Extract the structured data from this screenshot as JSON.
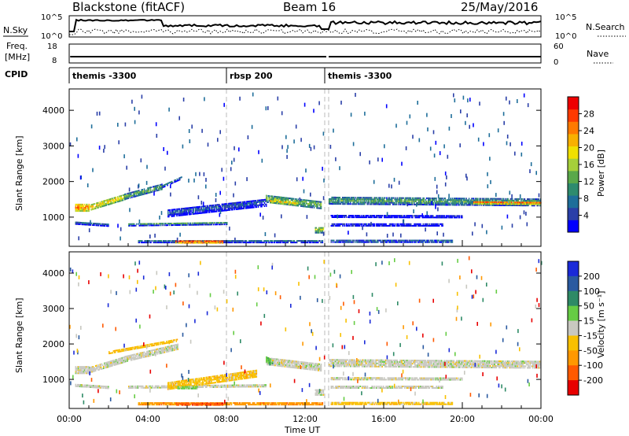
{
  "header": {
    "station": "Blackstone (fitACF)",
    "beam": "Beam 16",
    "date": "25/May/2016"
  },
  "top_panels": {
    "nsky_label": "N.Sky",
    "nsky_ticks": [
      "10^5",
      "10^0"
    ],
    "nsearch_label": "N.Search",
    "nsearch_ticks": [
      "10^5",
      "10^0"
    ],
    "freq_label_1": "Freq.",
    "freq_label_2": "[MHz]",
    "freq_ticks": [
      "18",
      "8"
    ],
    "nave_label": "Nave",
    "nave_ticks": [
      "60",
      "0"
    ],
    "cpid_label": "CPID",
    "cpid_segments": [
      {
        "label": "themis -3300",
        "start_hour": 0.0
      },
      {
        "label": "rbsp 200",
        "start_hour": 8.0
      },
      {
        "label": "themis -3300",
        "start_hour": 13.0
      }
    ]
  },
  "chart_data": [
    {
      "type": "heatmap",
      "title": "Power",
      "xlabel": "",
      "ylabel": "Slant Range [km]",
      "xlim": [
        0,
        24
      ],
      "ylim": [
        180,
        4600
      ],
      "y_ticks": [
        1000,
        2000,
        3000,
        4000
      ],
      "colorbar": {
        "label": "Power [dB]",
        "min": 0,
        "max": 32,
        "ticks": [
          4,
          8,
          12,
          16,
          20,
          24,
          28
        ],
        "colors": [
          "#0000ff",
          "#2a3fa8",
          "#1e6e9a",
          "#2e8b6e",
          "#5aa84a",
          "#a6cf3a",
          "#f0e000",
          "#f8b000",
          "#ff7a00",
          "#ff3a00",
          "#ee0000"
        ]
      },
      "data_gap_hours": [
        13.0,
        13.2
      ],
      "bands": [
        {
          "x_start": 0.3,
          "x_end": 1.0,
          "y_start": 1250,
          "y_end": 1250,
          "width": 200,
          "level": 25
        },
        {
          "x_start": 1.0,
          "x_end": 2.8,
          "y_start": 1250,
          "y_end": 1550,
          "width": 160,
          "level": 21
        },
        {
          "x_start": 2.8,
          "x_end": 4.7,
          "y_start": 1550,
          "y_end": 1830,
          "width": 140,
          "level": 14
        },
        {
          "x_start": 4.7,
          "x_end": 5.7,
          "y_start": 1850,
          "y_end": 2100,
          "width": 90,
          "level": 8
        },
        {
          "x_start": 0.3,
          "x_end": 2.0,
          "y_start": 820,
          "y_end": 760,
          "width": 70,
          "level": 9
        },
        {
          "x_start": 3.0,
          "x_end": 8.0,
          "y_start": 780,
          "y_end": 820,
          "width": 90,
          "level": 11
        },
        {
          "x_start": 5.0,
          "x_end": 10.0,
          "y_start": 1100,
          "y_end": 1400,
          "width": 220,
          "level": 7
        },
        {
          "x_start": 10.0,
          "x_end": 12.8,
          "y_start": 1500,
          "y_end": 1320,
          "width": 200,
          "level": 15
        },
        {
          "x_start": 10.2,
          "x_end": 11.6,
          "y_start": 1420,
          "y_end": 1350,
          "width": 70,
          "level": 22
        },
        {
          "x_start": 12.5,
          "x_end": 12.95,
          "y_start": 620,
          "y_end": 620,
          "width": 160,
          "level": 17
        },
        {
          "x_start": 3.5,
          "x_end": 12.9,
          "y_start": 300,
          "y_end": 300,
          "width": 70,
          "level": 10
        },
        {
          "x_start": 5.4,
          "x_end": 7.8,
          "y_start": 290,
          "y_end": 290,
          "width": 70,
          "level": 29
        },
        {
          "x_start": 13.2,
          "x_end": 24.0,
          "y_start": 1450,
          "y_end": 1400,
          "width": 200,
          "level": 13
        },
        {
          "x_start": 20.5,
          "x_end": 24.0,
          "y_start": 1400,
          "y_end": 1380,
          "width": 90,
          "level": 25
        },
        {
          "x_start": 13.3,
          "x_end": 20.0,
          "y_start": 1000,
          "y_end": 990,
          "width": 50,
          "level": 7
        },
        {
          "x_start": 13.3,
          "x_end": 19.0,
          "y_start": 760,
          "y_end": 760,
          "width": 50,
          "level": 8
        },
        {
          "x_start": 13.3,
          "x_end": 19.5,
          "y_start": 300,
          "y_end": 300,
          "width": 50,
          "level": 12
        }
      ]
    },
    {
      "type": "heatmap",
      "title": "Velocity",
      "xlabel": "Time UT",
      "ylabel": "Slant Range [km]",
      "xlim": [
        0,
        24
      ],
      "ylim": [
        180,
        4600
      ],
      "x_tick_labels": [
        "00:00",
        "04:00",
        "08:00",
        "12:00",
        "16:00",
        "20:00",
        "00:00"
      ],
      "y_ticks": [
        1000,
        2000,
        3000,
        4000
      ],
      "colorbar": {
        "label": "Velocity [m s⁻¹]",
        "tick_labels": [
          "200",
          "100",
          "50",
          "15",
          "-15",
          "-50",
          "-100",
          "-200"
        ],
        "colors": [
          "#1a2ad8",
          "#2a5aa0",
          "#2e8a66",
          "#66cc44",
          "#c8c8c0",
          "#f8c000",
          "#ff9800",
          "#ff5a00",
          "#e80000"
        ]
      },
      "bands": [
        {
          "x_start": 0.3,
          "x_end": 1.0,
          "y_start": 1250,
          "y_end": 1250,
          "width": 200,
          "level": 4
        },
        {
          "x_start": 1.0,
          "x_end": 2.8,
          "y_start": 1250,
          "y_end": 1550,
          "width": 160,
          "level": 4
        },
        {
          "x_start": 2.8,
          "x_end": 5.5,
          "y_start": 1550,
          "y_end": 1900,
          "width": 140,
          "level": 4
        },
        {
          "x_start": 2.0,
          "x_end": 5.5,
          "y_start": 1750,
          "y_end": 2100,
          "width": 80,
          "level": 5
        },
        {
          "x_start": 0.3,
          "x_end": 2.0,
          "y_start": 820,
          "y_end": 760,
          "width": 70,
          "level": 4
        },
        {
          "x_start": 3.0,
          "x_end": 10.0,
          "y_start": 780,
          "y_end": 820,
          "width": 90,
          "level": 4
        },
        {
          "x_start": 5.0,
          "x_end": 9.5,
          "y_start": 800,
          "y_end": 1150,
          "width": 200,
          "level": 5
        },
        {
          "x_start": 5.5,
          "x_end": 6.5,
          "y_start": 750,
          "y_end": 750,
          "width": 60,
          "level": 3
        },
        {
          "x_start": 10.0,
          "x_end": 12.8,
          "y_start": 1500,
          "y_end": 1320,
          "width": 200,
          "level": 4
        },
        {
          "x_start": 10.0,
          "x_end": 10.35,
          "y_start": 1550,
          "y_end": 1450,
          "width": 160,
          "level": 3
        },
        {
          "x_start": 12.5,
          "x_end": 12.95,
          "y_start": 620,
          "y_end": 620,
          "width": 160,
          "level": 4
        },
        {
          "x_start": 3.5,
          "x_end": 12.9,
          "y_start": 300,
          "y_end": 300,
          "width": 70,
          "level": 6
        },
        {
          "x_start": 5.4,
          "x_end": 7.8,
          "y_start": 290,
          "y_end": 290,
          "width": 70,
          "level": 7
        },
        {
          "x_start": 13.2,
          "x_end": 24.0,
          "y_start": 1450,
          "y_end": 1400,
          "width": 200,
          "level": 4
        },
        {
          "x_start": 13.3,
          "x_end": 20.0,
          "y_start": 1000,
          "y_end": 990,
          "width": 50,
          "level": 4
        },
        {
          "x_start": 13.3,
          "x_end": 19.0,
          "y_start": 760,
          "y_end": 760,
          "width": 50,
          "level": 4
        },
        {
          "x_start": 13.3,
          "x_end": 19.5,
          "y_start": 300,
          "y_end": 300,
          "width": 50,
          "level": 5
        }
      ]
    }
  ]
}
